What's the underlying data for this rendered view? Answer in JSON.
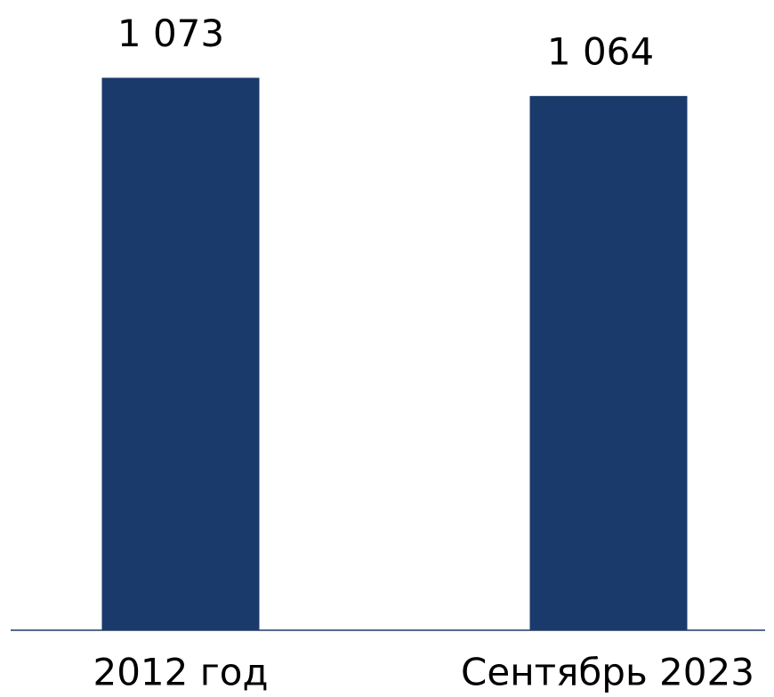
{
  "chart_data": {
    "type": "bar",
    "categories": [
      "2012 год",
      "Сентябрь 2023"
    ],
    "values": [
      1073,
      1064
    ],
    "value_labels": [
      "1 073",
      "1 064"
    ],
    "color": "#1a3a6b",
    "ylim": [
      800,
      1100
    ]
  }
}
